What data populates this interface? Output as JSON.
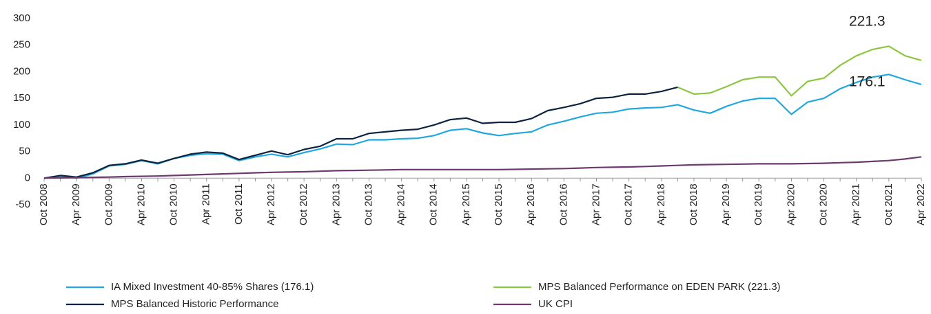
{
  "chart_data": {
    "type": "line",
    "categories": [
      "Oct 2008",
      null,
      "Apr 2009",
      null,
      "Oct 2009",
      null,
      "Apr 2010",
      null,
      "Oct 2010",
      null,
      "Apr 2011",
      null,
      "Oct 2011",
      null,
      "Apr 2012",
      null,
      "Oct 2012",
      null,
      "Apr 2013",
      null,
      "Oct 2013",
      null,
      "Apr 2014",
      null,
      "Oct 2014",
      null,
      "Apr 2015",
      null,
      "Oct 2015",
      null,
      "Apr 2016",
      null,
      "Oct 2016",
      null,
      "Apr 2017",
      null,
      "Oct 2017",
      null,
      "Apr 2018",
      null,
      "Oct 2018",
      null,
      "Apr 2019",
      null,
      "Oct 2019",
      null,
      "Apr 2020",
      null,
      "Oct 2020",
      null,
      "Apr 2021",
      null,
      "Oct 2021",
      null,
      "Apr 2022"
    ],
    "series": [
      {
        "name": "IA Mixed Investment 40-85% Shares (176.1)",
        "color": "#1ea7e1",
        "values": [
          0,
          3,
          0,
          8,
          23,
          26,
          33,
          27,
          37,
          43,
          46,
          45,
          33,
          40,
          45,
          40,
          48,
          55,
          64,
          63,
          72,
          72,
          74,
          75,
          80,
          90,
          93,
          85,
          80,
          84,
          87,
          100,
          107,
          115,
          122,
          124,
          130,
          132,
          133,
          138,
          128,
          122,
          135,
          145,
          150,
          150,
          120,
          143,
          150,
          168,
          180,
          190,
          195,
          185,
          176.1
        ]
      },
      {
        "name": "MPS Balanced Performance on EDEN PARK (221.3)",
        "color": "#8cc63f",
        "values": [
          null,
          null,
          null,
          null,
          null,
          null,
          null,
          null,
          null,
          null,
          null,
          null,
          null,
          null,
          null,
          null,
          null,
          null,
          null,
          null,
          null,
          null,
          null,
          null,
          null,
          null,
          null,
          null,
          null,
          null,
          null,
          null,
          null,
          null,
          null,
          null,
          null,
          null,
          null,
          171,
          158,
          160,
          172,
          185,
          190,
          190,
          155,
          182,
          188,
          212,
          230,
          242,
          248,
          230,
          221.3
        ]
      },
      {
        "name": "MPS Balanced Historic Performance",
        "color": "#0d2340",
        "values": [
          0,
          5,
          2,
          10,
          24,
          27,
          34,
          28,
          37,
          45,
          49,
          47,
          35,
          43,
          51,
          44,
          54,
          60,
          74,
          74,
          84,
          87,
          90,
          92,
          100,
          110,
          113,
          103,
          105,
          105,
          112,
          127,
          133,
          140,
          150,
          152,
          158,
          158,
          163,
          171,
          null,
          null,
          null,
          null,
          null,
          null,
          null,
          null,
          null,
          null,
          null,
          null,
          null,
          null,
          null
        ]
      },
      {
        "name": "UK CPI",
        "color": "#6b3a6e",
        "values": [
          0,
          0.5,
          1,
          1.5,
          2,
          3,
          3.5,
          4,
          5,
          6,
          7,
          8,
          9,
          10,
          11,
          11.5,
          12,
          13,
          14,
          14.5,
          15,
          15.5,
          16,
          16,
          16,
          16,
          16,
          16,
          16,
          16.5,
          17,
          17.5,
          18,
          19,
          20,
          20.5,
          21,
          22,
          23,
          24,
          25,
          25.5,
          26,
          26.5,
          27,
          27,
          27,
          27.5,
          28,
          29,
          30,
          31.5,
          33,
          36,
          40
        ]
      }
    ],
    "annotations": [
      {
        "text": "221.3",
        "series": 1
      },
      {
        "text": "176.1",
        "series": 0
      }
    ],
    "ylim": [
      -50,
      300
    ],
    "yticks": [
      -50,
      0,
      50,
      100,
      150,
      200,
      250,
      300
    ],
    "grid": false
  }
}
